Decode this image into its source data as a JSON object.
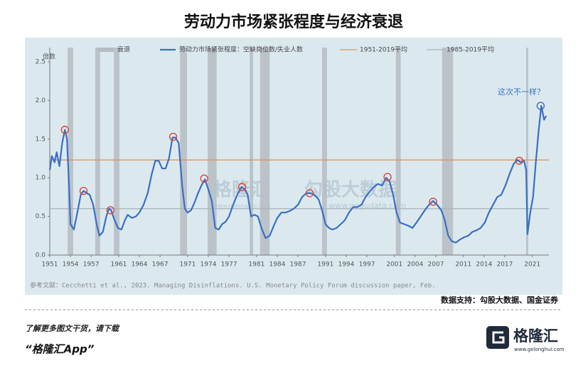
{
  "chart_data": {
    "type": "line",
    "title": "劳动力市场紧张程度与经济衰退",
    "y_label": "倍数",
    "recession_label": "衰退",
    "recession_color": "#b5bcc2",
    "recessions": [
      {
        "start": 1953.6,
        "end": 1954.4
      },
      {
        "start": 1957.6,
        "end": 1958.3
      },
      {
        "start": 1960.3,
        "end": 1961.1
      },
      {
        "start": 1969.9,
        "end": 1970.9
      },
      {
        "start": 1973.9,
        "end": 1975.2
      },
      {
        "start": 1980.0,
        "end": 1980.5
      },
      {
        "start": 1981.5,
        "end": 1982.9
      },
      {
        "start": 1990.5,
        "end": 1991.2
      },
      {
        "start": 2001.2,
        "end": 2001.9
      },
      {
        "start": 2007.9,
        "end": 2009.5
      },
      {
        "start": 2020.1,
        "end": 2020.4
      }
    ],
    "x": [
      1951.0,
      1951.3,
      1951.7,
      1952.0,
      1952.4,
      1952.8,
      1953.2,
      1953.5,
      1953.8,
      1954.0,
      1954.5,
      1955.0,
      1955.5,
      1955.9,
      1956.4,
      1956.8,
      1957.3,
      1957.8,
      1958.2,
      1958.7,
      1959.2,
      1959.6,
      1959.9,
      1960.4,
      1960.9,
      1961.4,
      1961.9,
      1962.3,
      1962.9,
      1963.5,
      1964.0,
      1964.6,
      1965.2,
      1965.8,
      1966.3,
      1966.8,
      1967.3,
      1967.8,
      1968.3,
      1968.8,
      1969.2,
      1969.7,
      1970.2,
      1970.6,
      1971.0,
      1971.5,
      1972.0,
      1972.5,
      1973.0,
      1973.5,
      1974.0,
      1974.5,
      1975.0,
      1975.5,
      1976.0,
      1976.5,
      1977.0,
      1977.6,
      1978.2,
      1978.8,
      1979.3,
      1979.7,
      1980.2,
      1980.7,
      1981.2,
      1981.7,
      1982.3,
      1982.9,
      1983.5,
      1984.0,
      1984.6,
      1985.2,
      1985.8,
      1986.4,
      1987.0,
      1987.6,
      1988.2,
      1988.8,
      1989.4,
      1990.0,
      1990.5,
      1991.0,
      1991.5,
      1992.0,
      1992.6,
      1993.2,
      1993.8,
      1994.4,
      1995.0,
      1995.6,
      1996.2,
      1996.8,
      1997.4,
      1998.0,
      1998.6,
      1999.2,
      1999.8,
      2000.3,
      2000.8,
      2001.3,
      2001.8,
      2002.4,
      2003.0,
      2003.6,
      2004.2,
      2004.8,
      2005.4,
      2006.0,
      2006.6,
      2007.2,
      2007.8,
      2008.3,
      2008.8,
      2009.3,
      2009.9,
      2010.5,
      2011.1,
      2011.7,
      2012.3,
      2012.9,
      2013.5,
      2014.1,
      2014.7,
      2015.3,
      2015.9,
      2016.5,
      2017.1,
      2017.7,
      2018.3,
      2018.8,
      2019.3,
      2019.8,
      2020.1,
      2020.3,
      2020.7,
      2021.1,
      2021.5,
      2021.9,
      2022.3,
      2022.7,
      2023.0
    ],
    "series": [
      {
        "name": "劳动力市场紧张程度：空缺岗位数/失业人数",
        "color": "#3a6fc4",
        "values": [
          1.1,
          1.28,
          1.2,
          1.33,
          1.15,
          1.45,
          1.62,
          1.5,
          0.9,
          0.4,
          0.33,
          0.55,
          0.78,
          0.83,
          0.8,
          0.78,
          0.65,
          0.4,
          0.25,
          0.3,
          0.5,
          0.6,
          0.58,
          0.45,
          0.35,
          0.33,
          0.45,
          0.52,
          0.48,
          0.5,
          0.55,
          0.65,
          0.8,
          1.05,
          1.22,
          1.22,
          1.12,
          1.12,
          1.25,
          1.52,
          1.52,
          1.45,
          0.9,
          0.6,
          0.55,
          0.58,
          0.68,
          0.8,
          0.9,
          0.98,
          0.85,
          0.7,
          0.35,
          0.33,
          0.4,
          0.43,
          0.5,
          0.65,
          0.78,
          0.88,
          0.85,
          0.78,
          0.5,
          0.52,
          0.5,
          0.35,
          0.22,
          0.25,
          0.38,
          0.48,
          0.55,
          0.55,
          0.57,
          0.6,
          0.65,
          0.75,
          0.8,
          0.8,
          0.78,
          0.72,
          0.58,
          0.4,
          0.35,
          0.33,
          0.35,
          0.4,
          0.45,
          0.55,
          0.62,
          0.62,
          0.65,
          0.75,
          0.82,
          0.88,
          0.92,
          0.9,
          1.0,
          0.95,
          0.78,
          0.55,
          0.42,
          0.4,
          0.38,
          0.35,
          0.42,
          0.5,
          0.58,
          0.65,
          0.7,
          0.65,
          0.58,
          0.45,
          0.25,
          0.18,
          0.16,
          0.2,
          0.23,
          0.25,
          0.3,
          0.32,
          0.35,
          0.42,
          0.55,
          0.65,
          0.75,
          0.78,
          0.9,
          1.05,
          1.18,
          1.23,
          1.2,
          1.22,
          1.1,
          0.27,
          0.55,
          0.75,
          1.2,
          1.6,
          1.93,
          1.75,
          1.8
        ]
      }
    ],
    "averages": [
      {
        "name": "1951-2019平均",
        "value": 1.23,
        "color": "#e0955a"
      },
      {
        "name": "1985-2019平均",
        "value": 0.6,
        "color": "#a9b2b8"
      }
    ],
    "markers": {
      "x": [
        1953.2,
        1955.9,
        1959.8,
        1968.9,
        1973.4,
        1978.9,
        1988.7,
        2000.0,
        2006.6,
        2019.1,
        2022.2
      ],
      "values": [
        1.62,
        0.83,
        0.58,
        1.53,
        0.99,
        0.88,
        0.8,
        1.01,
        0.69,
        1.22,
        1.93
      ],
      "colors": [
        "#d9453a",
        "#d9453a",
        "#d9453a",
        "#d9453a",
        "#d9453a",
        "#d9453a",
        "#d9453a",
        "#d9453a",
        "#d9453a",
        "#d9453a",
        "#3a6fc4"
      ]
    },
    "annotation": "这次不一样？",
    "xlim": [
      1951,
      2023.4
    ],
    "ylim": [
      0,
      2.5
    ],
    "xticks": [
      1951,
      1954,
      1957,
      1961,
      1964,
      1967,
      1971,
      1974,
      1977,
      1981,
      1984,
      1987,
      1991,
      1994,
      1997,
      2001,
      2004,
      2007,
      2011,
      2014,
      2017,
      2021
    ],
    "yticks": [
      {
        "value": 0,
        "label": "0.0"
      },
      0.5,
      {
        "value": 1,
        "label": "1.0"
      },
      1.5,
      {
        "value": 2,
        "label": "2.0"
      },
      2.5
    ],
    "source": "参考文献：Cecchetti et al., 2023. Managing Disinflations. U.S. Monetary Policy Forum discussion paper, Feb.",
    "data_credit": "数据支持：勾股大数据、国金证券",
    "watermarks": [
      "格隆汇",
      "www.gelonghui.com",
      "勾股大数据",
      "www.gogudata.com"
    ]
  },
  "footer": {
    "prompt": "了解更多图文干货，请下载",
    "app": "“格隆汇App”",
    "logo": "格隆汇",
    "logo_url": "www.gelonghui.com"
  }
}
